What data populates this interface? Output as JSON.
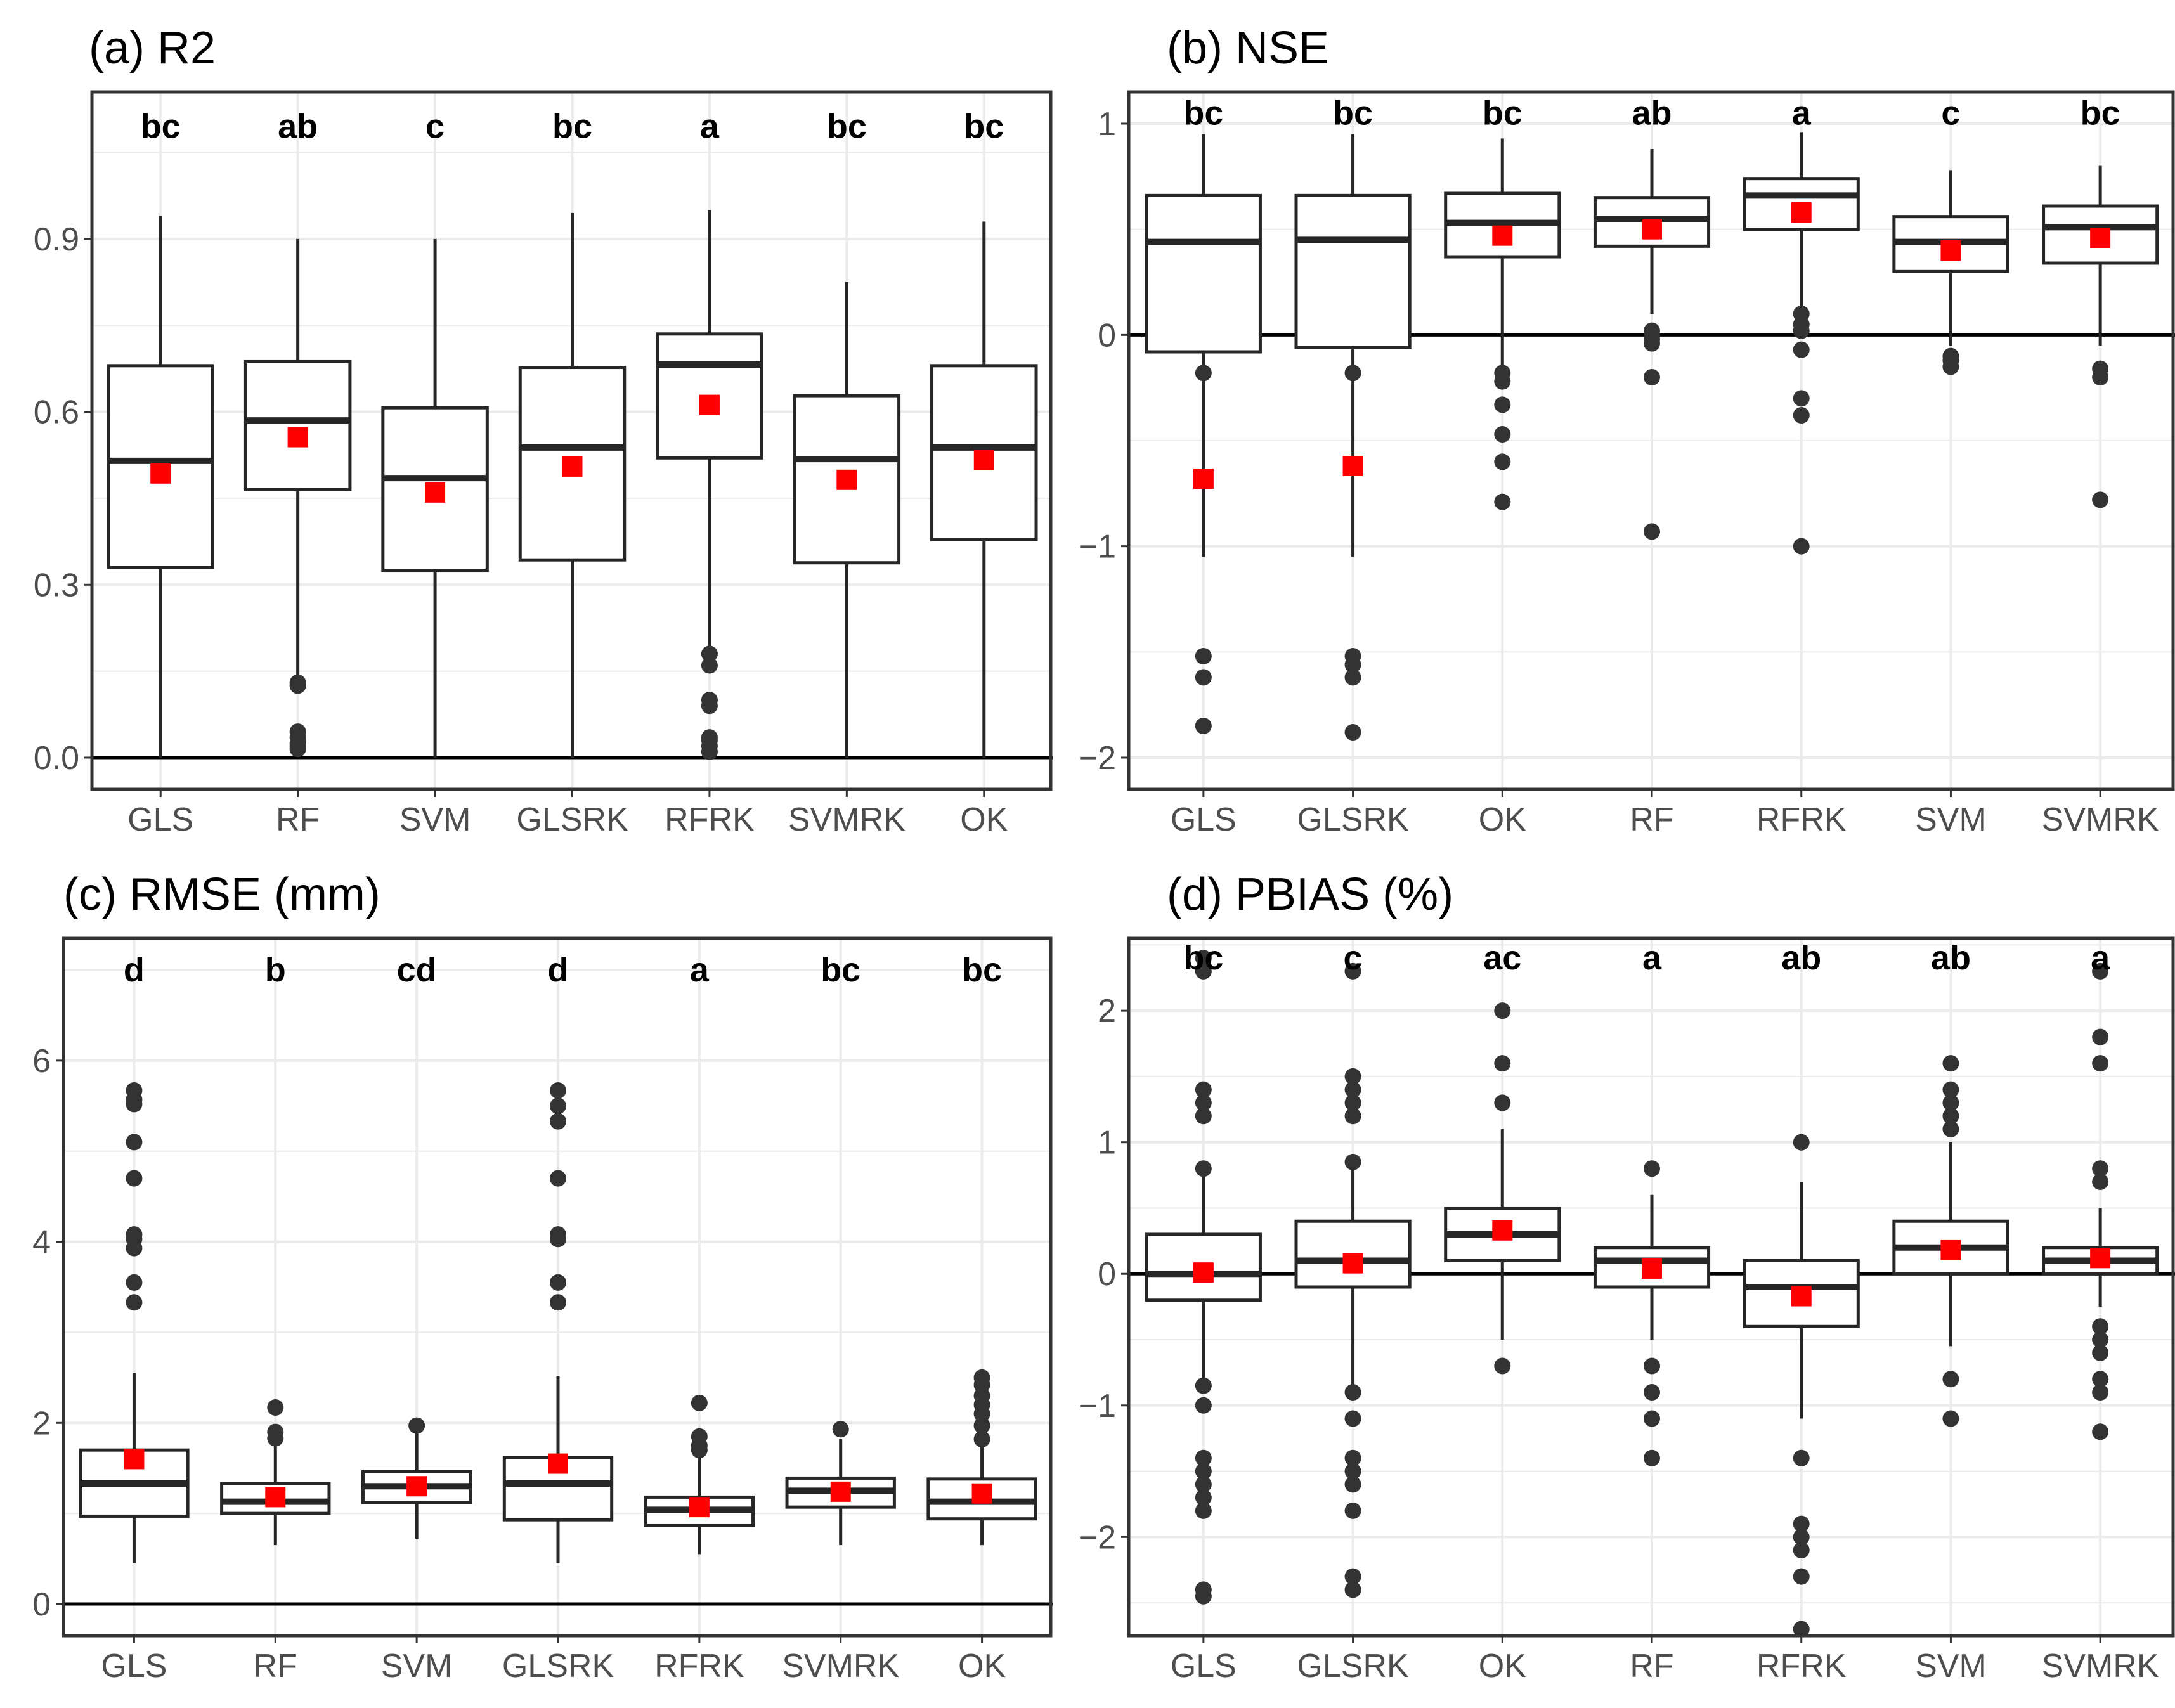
{
  "figure": {
    "description_colors": {
      "box_stroke": "#262626",
      "mean_marker": "#ff0000",
      "outlier": "#333333",
      "grid": "#ebebeb",
      "zero_line": "#000000",
      "panel_border": "#333333"
    }
  },
  "chart_data": [
    {
      "type": "box",
      "title": "(a) R2",
      "xlabel": "",
      "ylabel": "",
      "ylim": [
        -0.055,
        1.155
      ],
      "yticks": [
        0.0,
        0.3,
        0.6,
        0.9
      ],
      "ytick_labels": [
        "0.0",
        "0.3",
        "0.6",
        "0.9"
      ],
      "zero_line": 0,
      "grid": true,
      "letter_y": 1.095,
      "categories": [
        "GLS",
        "RF",
        "SVM",
        "GLSRK",
        "RFRK",
        "SVMRK",
        "OK"
      ],
      "letters": [
        "bc",
        "ab",
        "c",
        "bc",
        "a",
        "bc",
        "bc"
      ],
      "boxes": [
        {
          "lo": 0.0,
          "q1": 0.33,
          "median": 0.515,
          "q3": 0.68,
          "hi": 0.94,
          "mean": 0.493,
          "outliers": []
        },
        {
          "lo": 0.14,
          "q1": 0.465,
          "median": 0.585,
          "q3": 0.687,
          "hi": 0.9,
          "mean": 0.556,
          "outliers": [
            0.125,
            0.13,
            0.045,
            0.035,
            0.025,
            0.02,
            0.015
          ]
        },
        {
          "lo": 0.0,
          "q1": 0.325,
          "median": 0.485,
          "q3": 0.607,
          "hi": 0.9,
          "mean": 0.46,
          "outliers": []
        },
        {
          "lo": 0.0,
          "q1": 0.343,
          "median": 0.538,
          "q3": 0.677,
          "hi": 0.945,
          "mean": 0.505,
          "outliers": []
        },
        {
          "lo": 0.19,
          "q1": 0.52,
          "median": 0.682,
          "q3": 0.735,
          "hi": 0.95,
          "mean": 0.612,
          "outliers": [
            0.18,
            0.16,
            0.1,
            0.09,
            0.035,
            0.03,
            0.02,
            0.01
          ]
        },
        {
          "lo": 0.0,
          "q1": 0.338,
          "median": 0.518,
          "q3": 0.628,
          "hi": 0.825,
          "mean": 0.482,
          "outliers": []
        },
        {
          "lo": 0.0,
          "q1": 0.378,
          "median": 0.538,
          "q3": 0.68,
          "hi": 0.93,
          "mean": 0.516,
          "outliers": []
        }
      ]
    },
    {
      "type": "box",
      "title": "(b) NSE",
      "xlabel": "",
      "ylabel": "",
      "ylim": [
        -2.15,
        1.15
      ],
      "yticks": [
        -2,
        -1,
        0,
        1
      ],
      "ytick_labels": [
        "−2",
        "−1",
        "0",
        "1"
      ],
      "zero_line": 0,
      "grid": true,
      "letter_y": 1.05,
      "categories": [
        "GLS",
        "GLSRK",
        "OK",
        "RF",
        "RFRK",
        "SVM",
        "SVMRK"
      ],
      "letters": [
        "bc",
        "bc",
        "bc",
        "ab",
        "a",
        "c",
        "bc"
      ],
      "boxes": [
        {
          "lo": -1.05,
          "q1": -0.08,
          "median": 0.44,
          "q3": 0.66,
          "hi": 0.95,
          "mean": -0.68,
          "outliers": [
            -0.18,
            -1.52,
            -1.62,
            -1.85
          ]
        },
        {
          "lo": -1.05,
          "q1": -0.06,
          "median": 0.45,
          "q3": 0.66,
          "hi": 0.95,
          "mean": -0.62,
          "outliers": [
            -0.18,
            -1.52,
            -1.56,
            -1.62,
            -1.88
          ]
        },
        {
          "lo": -0.15,
          "q1": 0.37,
          "median": 0.53,
          "q3": 0.67,
          "hi": 0.93,
          "mean": 0.47,
          "outliers": [
            -0.18,
            -0.22,
            -0.33,
            -0.47,
            -0.6,
            -0.79
          ]
        },
        {
          "lo": 0.1,
          "q1": 0.42,
          "median": 0.55,
          "q3": 0.65,
          "hi": 0.88,
          "mean": 0.5,
          "outliers": [
            0.02,
            0.0,
            -0.02,
            -0.04,
            -0.2,
            -0.93
          ]
        },
        {
          "lo": 0.12,
          "q1": 0.5,
          "median": 0.66,
          "q3": 0.74,
          "hi": 0.96,
          "mean": 0.58,
          "outliers": [
            0.1,
            0.05,
            0.02,
            -0.07,
            -0.3,
            -0.38,
            -1.0
          ]
        },
        {
          "lo": -0.05,
          "q1": 0.3,
          "median": 0.44,
          "q3": 0.56,
          "hi": 0.78,
          "mean": 0.4,
          "outliers": [
            -0.1,
            -0.12,
            -0.15
          ]
        },
        {
          "lo": -0.05,
          "q1": 0.34,
          "median": 0.51,
          "q3": 0.61,
          "hi": 0.8,
          "mean": 0.46,
          "outliers": [
            -0.16,
            -0.2,
            -0.78
          ]
        }
      ]
    },
    {
      "type": "box",
      "title": "(c) RMSE (mm)",
      "xlabel": "",
      "ylabel": "",
      "ylim": [
        -0.35,
        7.35
      ],
      "yticks": [
        0,
        2,
        4,
        6
      ],
      "ytick_labels": [
        "0",
        "2",
        "4",
        "6"
      ],
      "zero_line": 0,
      "grid": true,
      "letter_y": 7.0,
      "categories": [
        "GLS",
        "RF",
        "SVM",
        "GLSRK",
        "RFRK",
        "SVMRK",
        "OK"
      ],
      "letters": [
        "d",
        "b",
        "cd",
        "d",
        "a",
        "bc",
        "bc"
      ],
      "boxes": [
        {
          "lo": 0.45,
          "q1": 0.97,
          "median": 1.33,
          "q3": 1.7,
          "hi": 2.55,
          "mean": 1.6,
          "outliers": [
            3.33,
            3.55,
            3.93,
            4.03,
            4.08,
            4.7,
            5.1,
            5.52,
            5.57,
            5.67
          ]
        },
        {
          "lo": 0.65,
          "q1": 1.0,
          "median": 1.13,
          "q3": 1.33,
          "hi": 1.8,
          "mean": 1.18,
          "outliers": [
            1.83,
            1.9,
            2.17
          ]
        },
        {
          "lo": 0.72,
          "q1": 1.12,
          "median": 1.3,
          "q3": 1.46,
          "hi": 1.95,
          "mean": 1.3,
          "outliers": [
            1.97
          ]
        },
        {
          "lo": 0.45,
          "q1": 0.93,
          "median": 1.33,
          "q3": 1.62,
          "hi": 2.52,
          "mean": 1.55,
          "outliers": [
            3.33,
            3.55,
            4.03,
            4.08,
            4.7,
            5.33,
            5.5,
            5.67
          ]
        },
        {
          "lo": 0.55,
          "q1": 0.87,
          "median": 1.04,
          "q3": 1.18,
          "hi": 1.65,
          "mean": 1.07,
          "outliers": [
            1.7,
            1.75,
            1.85,
            2.22
          ]
        },
        {
          "lo": 0.65,
          "q1": 1.07,
          "median": 1.25,
          "q3": 1.39,
          "hi": 1.82,
          "mean": 1.24,
          "outliers": [
            1.93
          ]
        },
        {
          "lo": 0.65,
          "q1": 0.94,
          "median": 1.13,
          "q3": 1.38,
          "hi": 1.78,
          "mean": 1.22,
          "outliers": [
            1.82,
            1.97,
            2.1,
            2.2,
            2.3,
            2.42,
            2.5
          ]
        }
      ]
    },
    {
      "type": "box",
      "title": "(d) PBIAS (%)",
      "xlabel": "",
      "ylabel": "",
      "ylim": [
        -2.75,
        2.55
      ],
      "yticks": [
        -2,
        -1,
        0,
        1,
        2
      ],
      "ytick_labels": [
        "−2",
        "−1",
        "0",
        "1",
        "2"
      ],
      "zero_line": 0,
      "grid": true,
      "letter_y": 2.4,
      "categories": [
        "GLS",
        "GLSRK",
        "OK",
        "RF",
        "RFRK",
        "SVM",
        "SVMRK"
      ],
      "letters": [
        "bc",
        "c",
        "ac",
        "a",
        "ab",
        "ab",
        "a"
      ],
      "boxes": [
        {
          "lo": -0.8,
          "q1": -0.2,
          "median": 0.0,
          "q3": 0.3,
          "hi": 0.75,
          "mean": 0.01,
          "outliers": [
            0.8,
            1.2,
            1.3,
            1.4,
            2.3,
            2.4,
            -0.85,
            -1.0,
            -1.4,
            -1.5,
            -1.6,
            -1.7,
            -1.8,
            -2.4,
            -2.45
          ]
        },
        {
          "lo": -0.85,
          "q1": -0.1,
          "median": 0.1,
          "q3": 0.4,
          "hi": 0.8,
          "mean": 0.08,
          "outliers": [
            0.85,
            1.2,
            1.3,
            1.4,
            1.5,
            2.3,
            -0.9,
            -1.1,
            -1.4,
            -1.5,
            -1.6,
            -1.8,
            -2.3,
            -2.4
          ]
        },
        {
          "lo": -0.5,
          "q1": 0.1,
          "median": 0.3,
          "q3": 0.5,
          "hi": 1.1,
          "mean": 0.33,
          "outliers": [
            1.3,
            1.6,
            2.0,
            -0.7
          ]
        },
        {
          "lo": -0.5,
          "q1": -0.1,
          "median": 0.1,
          "q3": 0.2,
          "hi": 0.6,
          "mean": 0.04,
          "outliers": [
            0.8,
            -0.7,
            -0.9,
            -1.1,
            -1.4
          ]
        },
        {
          "lo": -1.1,
          "q1": -0.4,
          "median": -0.1,
          "q3": 0.1,
          "hi": 0.7,
          "mean": -0.17,
          "outliers": [
            1.0,
            -1.4,
            -1.9,
            -2.0,
            -2.1,
            -2.3,
            -2.7
          ]
        },
        {
          "lo": -0.55,
          "q1": 0.0,
          "median": 0.2,
          "q3": 0.4,
          "hi": 1.0,
          "mean": 0.18,
          "outliers": [
            1.1,
            1.2,
            1.3,
            1.4,
            1.6,
            -0.8,
            -1.1
          ]
        },
        {
          "lo": -0.25,
          "q1": 0.0,
          "median": 0.1,
          "q3": 0.2,
          "hi": 0.5,
          "mean": 0.12,
          "outliers": [
            0.7,
            0.8,
            1.6,
            1.8,
            2.3,
            -0.4,
            -0.5,
            -0.6,
            -0.8,
            -0.9,
            -1.2
          ]
        }
      ]
    }
  ]
}
